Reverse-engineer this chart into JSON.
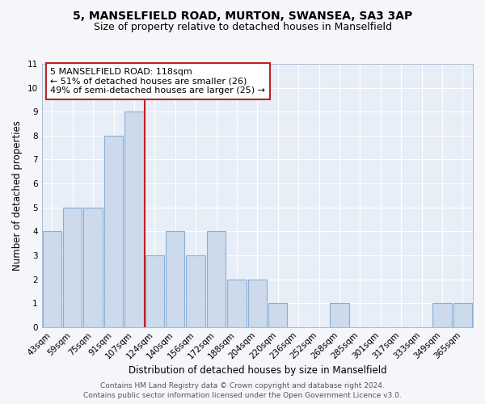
{
  "title": "5, MANSELFIELD ROAD, MURTON, SWANSEA, SA3 3AP",
  "subtitle": "Size of property relative to detached houses in Manselfield",
  "xlabel": "Distribution of detached houses by size in Manselfield",
  "ylabel": "Number of detached properties",
  "bar_labels": [
    "43sqm",
    "59sqm",
    "75sqm",
    "91sqm",
    "107sqm",
    "124sqm",
    "140sqm",
    "156sqm",
    "172sqm",
    "188sqm",
    "204sqm",
    "220sqm",
    "236sqm",
    "252sqm",
    "268sqm",
    "285sqm",
    "301sqm",
    "317sqm",
    "333sqm",
    "349sqm",
    "365sqm"
  ],
  "bar_values": [
    4,
    5,
    5,
    8,
    9,
    3,
    4,
    3,
    4,
    2,
    2,
    1,
    0,
    0,
    1,
    0,
    0,
    0,
    0,
    1,
    1
  ],
  "bar_color": "#ccdaec",
  "bar_edgecolor": "#8aafd4",
  "vline_color": "#bb2222",
  "ylim": [
    0,
    11
  ],
  "yticks": [
    0,
    1,
    2,
    3,
    4,
    5,
    6,
    7,
    8,
    9,
    10,
    11
  ],
  "annotation_text_line1": "5 MANSELFIELD ROAD: 118sqm",
  "annotation_text_line2": "← 51% of detached houses are smaller (26)",
  "annotation_text_line3": "49% of semi-detached houses are larger (25) →",
  "annotation_box_color": "#bb2222",
  "footer_line1": "Contains HM Land Registry data © Crown copyright and database right 2024.",
  "footer_line2": "Contains public sector information licensed under the Open Government Licence v3.0.",
  "background_color": "#e8eef8",
  "grid_color": "#ffffff",
  "fig_background": "#f5f6fa",
  "title_fontsize": 10,
  "subtitle_fontsize": 9,
  "axis_label_fontsize": 8.5,
  "tick_fontsize": 7.5,
  "annotation_fontsize": 8,
  "footer_fontsize": 6.5
}
